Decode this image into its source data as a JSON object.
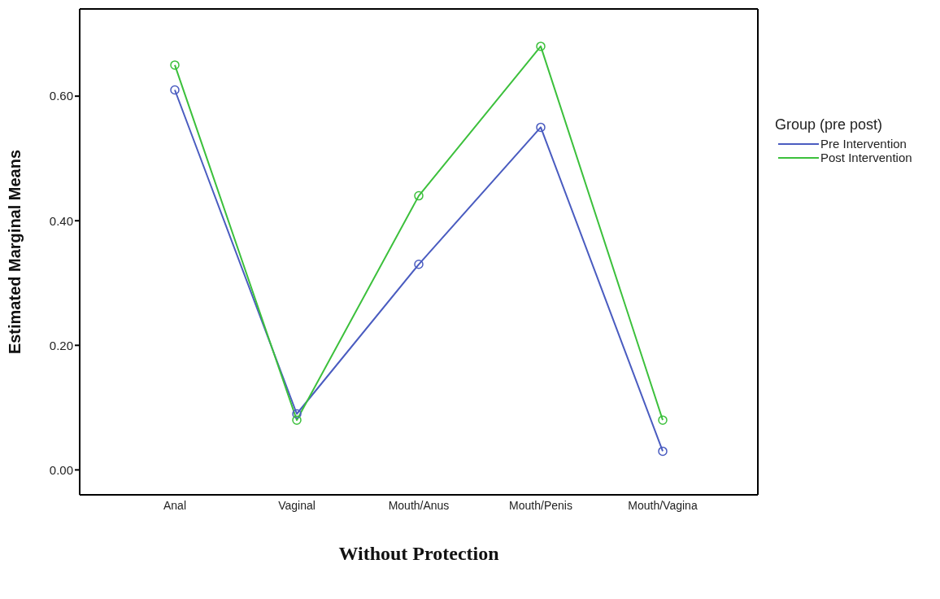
{
  "chart_data": {
    "type": "line",
    "xlabel": "Without Protection",
    "ylabel": "Estimated Marginal Means",
    "legend_title": "Group (pre post)",
    "categories": [
      "Anal",
      "Vaginal",
      "Mouth/Anus",
      "Mouth/Penis",
      "Mouth/Vagina"
    ],
    "series": [
      {
        "name": "Pre Intervention",
        "color": "#4a5cc0",
        "values": [
          0.61,
          0.09,
          0.33,
          0.55,
          0.03
        ]
      },
      {
        "name": "Post Intervention",
        "color": "#3cc03c",
        "values": [
          0.65,
          0.08,
          0.44,
          0.68,
          0.08
        ]
      }
    ],
    "ylim": [
      -0.04,
      0.74
    ],
    "yticks": [
      {
        "value": 0,
        "label": "0.00"
      },
      {
        "value": 0.2,
        "label": "0.20"
      },
      {
        "value": 0.4,
        "label": "0.40"
      },
      {
        "value": 0.6,
        "label": "0.60"
      }
    ],
    "legend": "right",
    "marker": "circle",
    "line_style": "solid"
  }
}
